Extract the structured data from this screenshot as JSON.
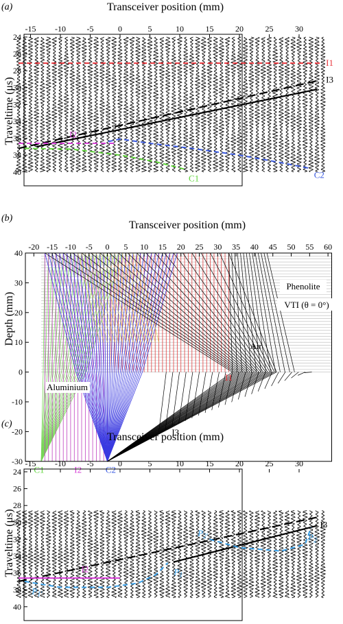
{
  "figure": {
    "panel_labels": [
      "(a)",
      "(b)",
      "(c)"
    ],
    "colors": {
      "I1": "#e8333a",
      "I2": "#d63fd6",
      "C1": "#5fd43a",
      "C2": "#3a5ae0",
      "I3": "#000000",
      "P": "#3aa0e8",
      "ray_blue": "#3a3ae0",
      "ray_green": "#7ad45a",
      "ray_magenta": "#c040c0",
      "ray_red": "#e04040",
      "ray_yellow": "#d8c84a"
    }
  },
  "chart_data": [
    {
      "panel": "(a)",
      "type": "line",
      "description_free": true,
      "xlabel": "Transceiver position (mm)",
      "ylabel": "Traveltime (μs)",
      "xlim": [
        -18,
        35
      ],
      "ylim": [
        40,
        24
      ],
      "xticks": [
        -15,
        -10,
        -5,
        0,
        5,
        10,
        15,
        20,
        25,
        30
      ],
      "yticks": [
        24,
        26,
        28,
        30,
        32,
        34,
        36,
        38,
        40
      ],
      "wiggle_traces": {
        "x_start": -17,
        "x_end": 34,
        "x_step": 1,
        "t_start": 24,
        "t_end": 40
      },
      "series": [
        {
          "name": "I1",
          "style": "dashed",
          "color": "#e8333a",
          "x": [
            -17,
            34
          ],
          "y": [
            27.1,
            27.1
          ]
        },
        {
          "name": "I3",
          "style": "dashed",
          "color": "#000000",
          "x": [
            -17,
            33
          ],
          "y": [
            37.2,
            29.2
          ]
        },
        {
          "name": "I3",
          "style": "solid",
          "color": "#000000",
          "x": [
            -14,
            33
          ],
          "y": [
            37.0,
            30.2
          ]
        },
        {
          "name": "I2",
          "style": "dashed",
          "color": "#d63fd6",
          "x": [
            -17,
            -1
          ],
          "y": [
            36.6,
            36.6
          ]
        },
        {
          "name": "C1",
          "style": "dashed",
          "color": "#5fd43a",
          "x": [
            -16,
            -8,
            0,
            6,
            11
          ],
          "y": [
            37.2,
            37.3,
            38.0,
            38.8,
            39.7
          ]
        },
        {
          "name": "C2",
          "style": "dashed",
          "color": "#3a5ae0",
          "x": [
            -2,
            0,
            5,
            12,
            20,
            27,
            32
          ],
          "y": [
            36.4,
            36.1,
            36.6,
            37.2,
            38.0,
            38.9,
            39.6
          ]
        }
      ],
      "labels": [
        {
          "text": "I1",
          "x": 34.5,
          "y": 27.1,
          "color": "#e8333a"
        },
        {
          "text": "I3",
          "x": 34.5,
          "y": 29.1,
          "color": "#000000"
        },
        {
          "text": "I2",
          "x": -8.5,
          "y": 35.6,
          "color": "#d63fd6"
        },
        {
          "text": "C1",
          "x": 11.5,
          "y": 40.8,
          "color": "#5fd43a"
        },
        {
          "text": "C2",
          "x": 32.5,
          "y": 40.4,
          "color": "#3a5ae0"
        }
      ]
    },
    {
      "panel": "(b)",
      "type": "line",
      "xlabel": "Transceiver position (mm)",
      "ylabel": "Depth (mm)",
      "xlim": [
        -22,
        61
      ],
      "ylim": [
        -30,
        40
      ],
      "xticks": [
        -20,
        -15,
        -10,
        -5,
        0,
        5,
        10,
        15,
        20,
        25,
        30,
        35,
        40,
        45,
        50,
        55,
        60
      ],
      "yticks": [
        40,
        30,
        20,
        10,
        0,
        -10,
        -20,
        -30
      ],
      "layer_labels": [
        "Phenolite",
        "VTI (θ = 0°)",
        "Air",
        "Aluminium"
      ],
      "rays": {
        "surface_depth": 40,
        "x_start": -17,
        "x_end": 34,
        "x_step": 1,
        "C1": {
          "x": -18,
          "y": -30
        },
        "C2": {
          "x": 0,
          "y": -30
        },
        "I3_end": {
          "x_start": 33,
          "x_end": 54,
          "y_at_0": [
            33,
            46
          ]
        }
      },
      "labels": [
        {
          "text": "I1",
          "x": 32,
          "y": -0.5,
          "color": "#e8333a"
        },
        {
          "text": "I2",
          "x": -9,
          "y": -31.5,
          "color": "#d63fd6"
        },
        {
          "text": "I3",
          "x": 17.5,
          "y": -19,
          "color": "#000000"
        },
        {
          "text": "C1",
          "x": -20,
          "y": -31.5,
          "color": "#5fd43a"
        },
        {
          "text": "C2",
          "x": -0.5,
          "y": -31.5,
          "color": "#3a5ae0"
        }
      ]
    },
    {
      "panel": "(c)",
      "type": "line",
      "xlabel": "Transceiver position (mm)",
      "ylabel": "Traveltime (μs)",
      "xlim": [
        -18,
        35
      ],
      "ylim": [
        40,
        24
      ],
      "xticks": [
        -15,
        -10,
        -5,
        0,
        5,
        10,
        15,
        20,
        25,
        30
      ],
      "yticks": [
        24,
        26,
        28,
        30,
        32,
        34,
        36,
        38,
        40
      ],
      "wiggle_traces": {
        "x_start": -17,
        "x_end": 34,
        "x_step": 1,
        "t_start": 28.6,
        "t_end": 39
      },
      "series": [
        {
          "name": "I3",
          "style": "dashed",
          "color": "#000000",
          "x": [
            -17,
            33
          ],
          "y": [
            37.0,
            29.4
          ]
        },
        {
          "name": "I3",
          "style": "solid",
          "color": "#000000",
          "x": [
            9,
            33
          ],
          "y": [
            34.7,
            30.4
          ]
        },
        {
          "name": "I2",
          "style": "solid",
          "color": "#d63fd6",
          "x": [
            -17,
            0
          ],
          "y": [
            36.6,
            36.6
          ]
        },
        {
          "name": "P",
          "style": "dashed",
          "color": "#3aa0e8",
          "x": [
            -16,
            -10,
            -2,
            3,
            6,
            8
          ],
          "y": [
            37.0,
            37.7,
            37.7,
            37.2,
            36.2,
            34.8
          ]
        },
        {
          "name": "P",
          "style": "dashed",
          "color": "#3aa0e8",
          "x": [
            15,
            20,
            27,
            31,
            32
          ],
          "y": [
            32.0,
            33.0,
            33.4,
            32.6,
            30.6
          ]
        }
      ],
      "labels": [
        {
          "text": "I3",
          "x": 33.5,
          "y": 30.3,
          "color": "#000000"
        },
        {
          "text": "I2",
          "x": -6.5,
          "y": 35.6,
          "color": "#d63fd6"
        },
        {
          "text": "P1",
          "x": 9,
          "y": 35.9,
          "color": "#3aa0e8"
        },
        {
          "text": "P1'",
          "x": -14.8,
          "y": 38.2,
          "color": "#3aa0e8"
        },
        {
          "text": "P2",
          "x": 31.5,
          "y": 31.8,
          "color": "#3aa0e8"
        },
        {
          "text": "P2'",
          "x": 13,
          "y": 31.3,
          "color": "#3aa0e8"
        }
      ]
    }
  ]
}
